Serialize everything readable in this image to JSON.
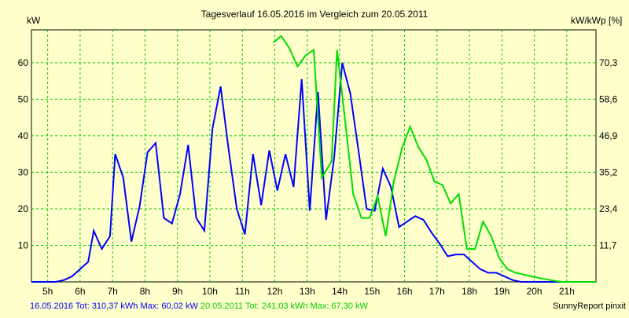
{
  "chart_data": {
    "type": "line",
    "title": "Tagesverlauf 16.05.2016 im Vergleich zum 20.05.2011",
    "ylabel_left": "kW",
    "ylabel_right": "kW/kWp [%]",
    "credit": "SunnyReport pinxit",
    "xlim": [
      4.5,
      21.9
    ],
    "ylim": [
      0,
      69
    ],
    "grid": true,
    "x_ticks": [
      5,
      6,
      7,
      8,
      9,
      10,
      11,
      12,
      13,
      14,
      15,
      16,
      17,
      18,
      19,
      20,
      21
    ],
    "x_tick_labels": [
      "5h",
      "6h",
      "7h",
      "8h",
      "9h",
      "10h",
      "11h",
      "12h",
      "13h",
      "14h",
      "15h",
      "16h",
      "17h",
      "18h",
      "19h",
      "20h",
      "21h"
    ],
    "y_ticks_left": [
      10,
      20,
      30,
      40,
      50,
      60
    ],
    "y_ticks_right": [
      11.7,
      23.4,
      35.2,
      46.9,
      58.6,
      70.3
    ],
    "series": [
      {
        "name": "16.05.2016",
        "summary": "Tot: 310,37 kWh Max: 60,02 kW",
        "color": "#0000ff",
        "points": [
          [
            4.5,
            0
          ],
          [
            5.25,
            0
          ],
          [
            5.5,
            0.5
          ],
          [
            5.75,
            1.5
          ],
          [
            6.0,
            3.5
          ],
          [
            6.25,
            5.5
          ],
          [
            6.42,
            14
          ],
          [
            6.67,
            9
          ],
          [
            6.92,
            12.5
          ],
          [
            7.08,
            35
          ],
          [
            7.33,
            28.5
          ],
          [
            7.58,
            11
          ],
          [
            7.83,
            20.5
          ],
          [
            8.08,
            35.5
          ],
          [
            8.33,
            38
          ],
          [
            8.58,
            17.5
          ],
          [
            8.83,
            16
          ],
          [
            9.08,
            24
          ],
          [
            9.33,
            37.5
          ],
          [
            9.58,
            17.5
          ],
          [
            9.83,
            14
          ],
          [
            10.08,
            42
          ],
          [
            10.33,
            53.5
          ],
          [
            10.58,
            36
          ],
          [
            10.83,
            20
          ],
          [
            11.08,
            13
          ],
          [
            11.33,
            35
          ],
          [
            11.58,
            21
          ],
          [
            11.83,
            36
          ],
          [
            12.08,
            25
          ],
          [
            12.33,
            35
          ],
          [
            12.58,
            26
          ],
          [
            12.83,
            55.5
          ],
          [
            13.08,
            19.5
          ],
          [
            13.33,
            52
          ],
          [
            13.58,
            17
          ],
          [
            13.83,
            34
          ],
          [
            14.08,
            60
          ],
          [
            14.33,
            51.5
          ],
          [
            14.58,
            36
          ],
          [
            14.83,
            20
          ],
          [
            15.08,
            19.5
          ],
          [
            15.33,
            31
          ],
          [
            15.58,
            26
          ],
          [
            15.83,
            15
          ],
          [
            16.08,
            16.5
          ],
          [
            16.33,
            18
          ],
          [
            16.58,
            17
          ],
          [
            16.83,
            13.5
          ],
          [
            17.08,
            10.5
          ],
          [
            17.33,
            7
          ],
          [
            17.58,
            7.5
          ],
          [
            17.83,
            7.5
          ],
          [
            18.08,
            5.5
          ],
          [
            18.33,
            3.5
          ],
          [
            18.58,
            2.5
          ],
          [
            18.83,
            2.5
          ],
          [
            19.08,
            1.5
          ],
          [
            19.33,
            0.5
          ],
          [
            19.58,
            0
          ],
          [
            21.9,
            0
          ]
        ]
      },
      {
        "name": "20.05.2011",
        "summary": "Tot: 241,03 kWh Max: 67,30 kW",
        "color": "#00dd00",
        "points": [
          [
            11.95,
            65.5
          ],
          [
            12.2,
            67.3
          ],
          [
            12.45,
            64
          ],
          [
            12.7,
            59
          ],
          [
            12.95,
            62
          ],
          [
            13.2,
            63.5
          ],
          [
            13.45,
            28.5
          ],
          [
            13.75,
            33
          ],
          [
            13.92,
            63.5
          ],
          [
            14.17,
            44
          ],
          [
            14.42,
            24
          ],
          [
            14.67,
            17.5
          ],
          [
            14.92,
            17.5
          ],
          [
            15.17,
            23.5
          ],
          [
            15.42,
            12.5
          ],
          [
            15.67,
            27.5
          ],
          [
            15.92,
            36.5
          ],
          [
            16.17,
            42.5
          ],
          [
            16.42,
            37
          ],
          [
            16.67,
            33.5
          ],
          [
            16.92,
            27.5
          ],
          [
            17.17,
            26.5
          ],
          [
            17.42,
            21.5
          ],
          [
            17.67,
            24
          ],
          [
            17.92,
            9
          ],
          [
            18.17,
            9
          ],
          [
            18.42,
            16.5
          ],
          [
            18.67,
            12.5
          ],
          [
            18.92,
            6.5
          ],
          [
            19.17,
            3.5
          ],
          [
            19.42,
            2.5
          ],
          [
            19.67,
            2
          ],
          [
            19.92,
            1.5
          ],
          [
            20.17,
            1
          ],
          [
            20.5,
            0.5
          ],
          [
            20.83,
            0
          ],
          [
            21.9,
            0
          ]
        ]
      }
    ]
  }
}
